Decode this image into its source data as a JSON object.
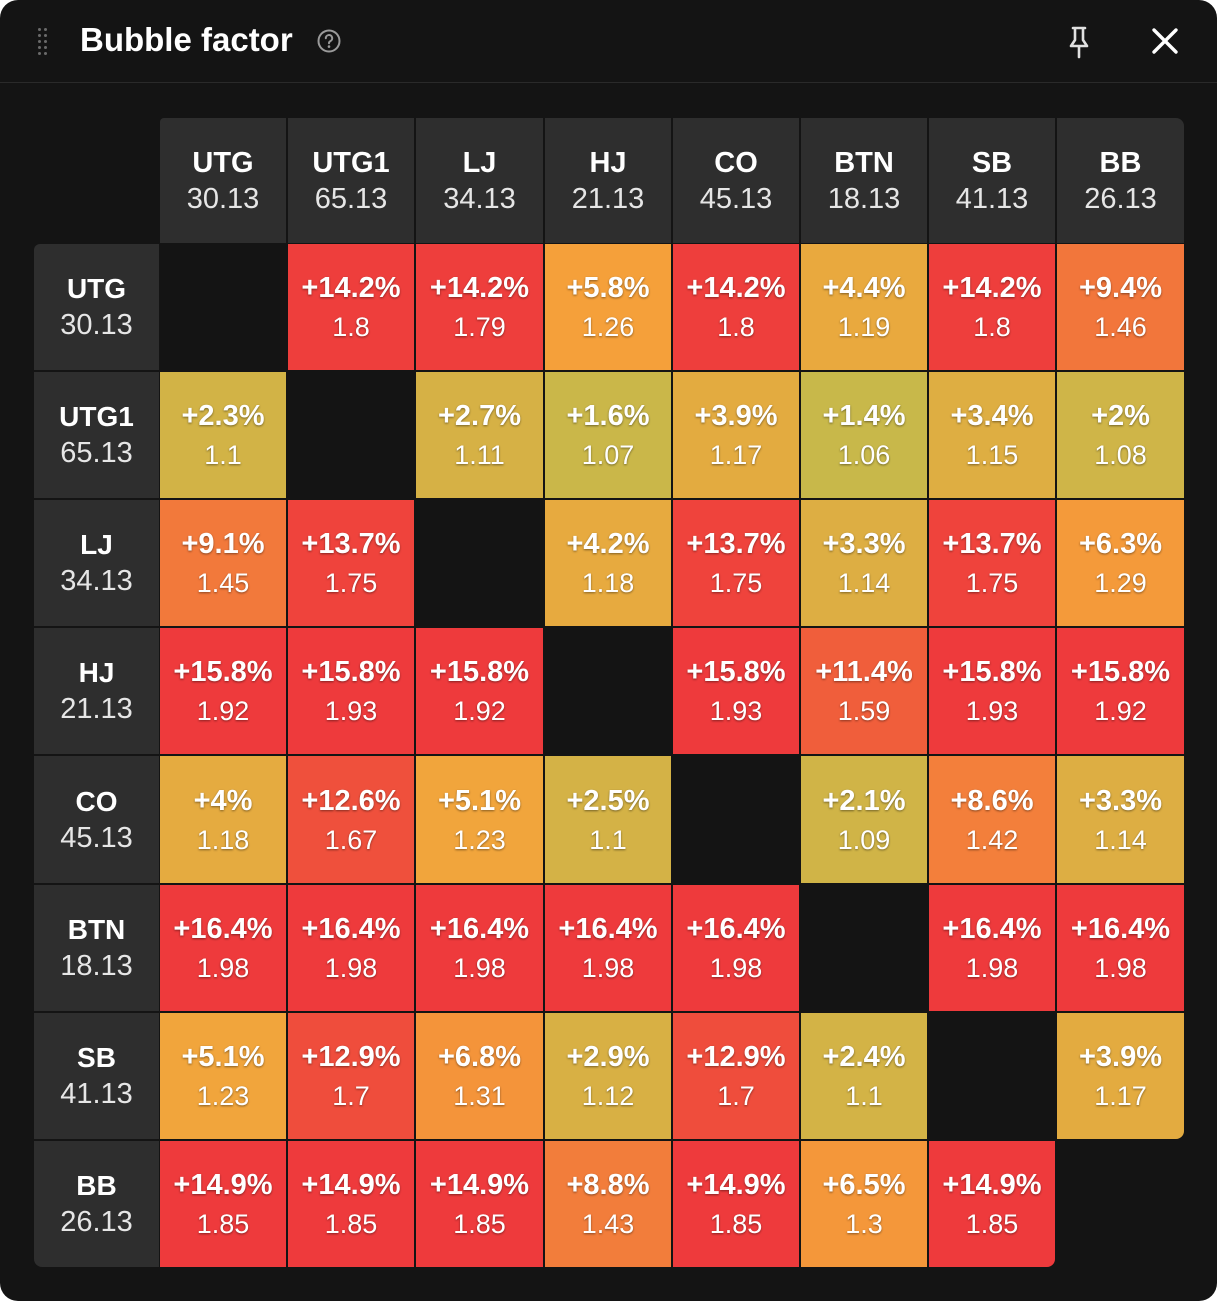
{
  "window": {
    "title": "Bubble factor",
    "icons": {
      "drag": "drag-handle-icon",
      "help": "help-circle-icon",
      "pin": "pin-icon",
      "close": "close-icon"
    }
  },
  "players": [
    {
      "name": "UTG",
      "stack": "30.13"
    },
    {
      "name": "UTG1",
      "stack": "65.13"
    },
    {
      "name": "LJ",
      "stack": "34.13"
    },
    {
      "name": "HJ",
      "stack": "21.13"
    },
    {
      "name": "CO",
      "stack": "45.13"
    },
    {
      "name": "BTN",
      "stack": "18.13"
    },
    {
      "name": "SB",
      "stack": "41.13"
    },
    {
      "name": "BB",
      "stack": "26.13"
    }
  ],
  "matrix": [
    [
      null,
      {
        "pct": "+14.2%",
        "factor": "1.8"
      },
      {
        "pct": "+14.2%",
        "factor": "1.79"
      },
      {
        "pct": "+5.8%",
        "factor": "1.26"
      },
      {
        "pct": "+14.2%",
        "factor": "1.8"
      },
      {
        "pct": "+4.4%",
        "factor": "1.19"
      },
      {
        "pct": "+14.2%",
        "factor": "1.8"
      },
      {
        "pct": "+9.4%",
        "factor": "1.46"
      }
    ],
    [
      {
        "pct": "+2.3%",
        "factor": "1.1"
      },
      null,
      {
        "pct": "+2.7%",
        "factor": "1.11"
      },
      {
        "pct": "+1.6%",
        "factor": "1.07"
      },
      {
        "pct": "+3.9%",
        "factor": "1.17"
      },
      {
        "pct": "+1.4%",
        "factor": "1.06"
      },
      {
        "pct": "+3.4%",
        "factor": "1.15"
      },
      {
        "pct": "+2%",
        "factor": "1.08"
      }
    ],
    [
      {
        "pct": "+9.1%",
        "factor": "1.45"
      },
      {
        "pct": "+13.7%",
        "factor": "1.75"
      },
      null,
      {
        "pct": "+4.2%",
        "factor": "1.18"
      },
      {
        "pct": "+13.7%",
        "factor": "1.75"
      },
      {
        "pct": "+3.3%",
        "factor": "1.14"
      },
      {
        "pct": "+13.7%",
        "factor": "1.75"
      },
      {
        "pct": "+6.3%",
        "factor": "1.29"
      }
    ],
    [
      {
        "pct": "+15.8%",
        "factor": "1.92"
      },
      {
        "pct": "+15.8%",
        "factor": "1.93"
      },
      {
        "pct": "+15.8%",
        "factor": "1.92"
      },
      null,
      {
        "pct": "+15.8%",
        "factor": "1.93"
      },
      {
        "pct": "+11.4%",
        "factor": "1.59"
      },
      {
        "pct": "+15.8%",
        "factor": "1.93"
      },
      {
        "pct": "+15.8%",
        "factor": "1.92"
      }
    ],
    [
      {
        "pct": "+4%",
        "factor": "1.18"
      },
      {
        "pct": "+12.6%",
        "factor": "1.67"
      },
      {
        "pct": "+5.1%",
        "factor": "1.23"
      },
      {
        "pct": "+2.5%",
        "factor": "1.1"
      },
      null,
      {
        "pct": "+2.1%",
        "factor": "1.09"
      },
      {
        "pct": "+8.6%",
        "factor": "1.42"
      },
      {
        "pct": "+3.3%",
        "factor": "1.14"
      }
    ],
    [
      {
        "pct": "+16.4%",
        "factor": "1.98"
      },
      {
        "pct": "+16.4%",
        "factor": "1.98"
      },
      {
        "pct": "+16.4%",
        "factor": "1.98"
      },
      {
        "pct": "+16.4%",
        "factor": "1.98"
      },
      {
        "pct": "+16.4%",
        "factor": "1.98"
      },
      null,
      {
        "pct": "+16.4%",
        "factor": "1.98"
      },
      {
        "pct": "+16.4%",
        "factor": "1.98"
      }
    ],
    [
      {
        "pct": "+5.1%",
        "factor": "1.23"
      },
      {
        "pct": "+12.9%",
        "factor": "1.7"
      },
      {
        "pct": "+6.8%",
        "factor": "1.31"
      },
      {
        "pct": "+2.9%",
        "factor": "1.12"
      },
      {
        "pct": "+12.9%",
        "factor": "1.7"
      },
      {
        "pct": "+2.4%",
        "factor": "1.1"
      },
      null,
      {
        "pct": "+3.9%",
        "factor": "1.17"
      }
    ],
    [
      {
        "pct": "+14.9%",
        "factor": "1.85"
      },
      {
        "pct": "+14.9%",
        "factor": "1.85"
      },
      {
        "pct": "+14.9%",
        "factor": "1.85"
      },
      {
        "pct": "+8.8%",
        "factor": "1.43"
      },
      {
        "pct": "+14.9%",
        "factor": "1.85"
      },
      {
        "pct": "+6.5%",
        "factor": "1.3"
      },
      {
        "pct": "+14.9%",
        "factor": "1.85"
      },
      null
    ]
  ],
  "colors": {
    "panel_bg": "#141414",
    "header_bg": "#2e2e2e",
    "scale_low": "#c8b84a",
    "scale_mid": "#f5a33a",
    "scale_high": "#ee3a3c"
  }
}
